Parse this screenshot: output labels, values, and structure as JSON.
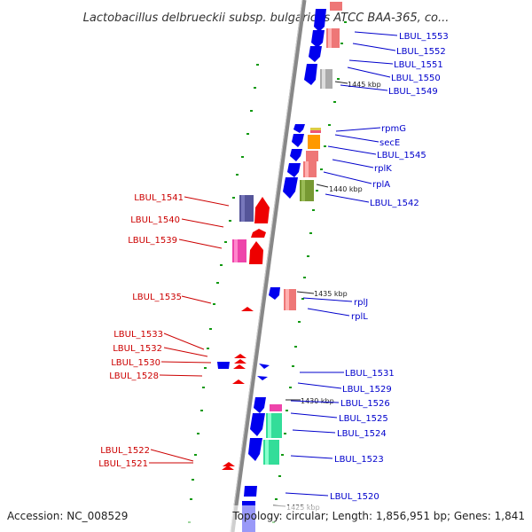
{
  "title": "Lactobacillus delbrueckii subsp. bulgaricus ATCC BAA-365, co...",
  "footer": {
    "accession": "Accession: NC_008529",
    "summary": "Topology: circular; Length: 1,856,951 bp; Genes: 1,841"
  },
  "scale_labels": [
    "1445 kbp",
    "1440 kbp",
    "1435 kbp",
    "1430 kbp",
    "1425 kbp"
  ],
  "right_labels": [
    "LBUL_1553",
    "LBUL_1552",
    "LBUL_1551",
    "LBUL_1550",
    "LBUL_1549",
    "rpmG",
    "secE",
    "LBUL_1545",
    "rplK",
    "rplA",
    "LBUL_1542",
    "rplJ",
    "rplL",
    "LBUL_1531",
    "LBUL_1529",
    "LBUL_1526",
    "LBUL_1525",
    "LBUL_1524",
    "LBUL_1523",
    "LBUL_1520"
  ],
  "left_labels": [
    "LBUL_1541",
    "LBUL_1540",
    "LBUL_1539",
    "LBUL_1535",
    "LBUL_1533",
    "LBUL_1532",
    "LBUL_1530",
    "LBUL_1528",
    "LBUL_1522",
    "LBUL_1521"
  ],
  "colors": {
    "forward": "#0000ee",
    "reverse": "#ee0000",
    "backbone": "#888888",
    "right_label": "#0000cc",
    "left_label": "#cc0000",
    "tick": "#119911"
  }
}
